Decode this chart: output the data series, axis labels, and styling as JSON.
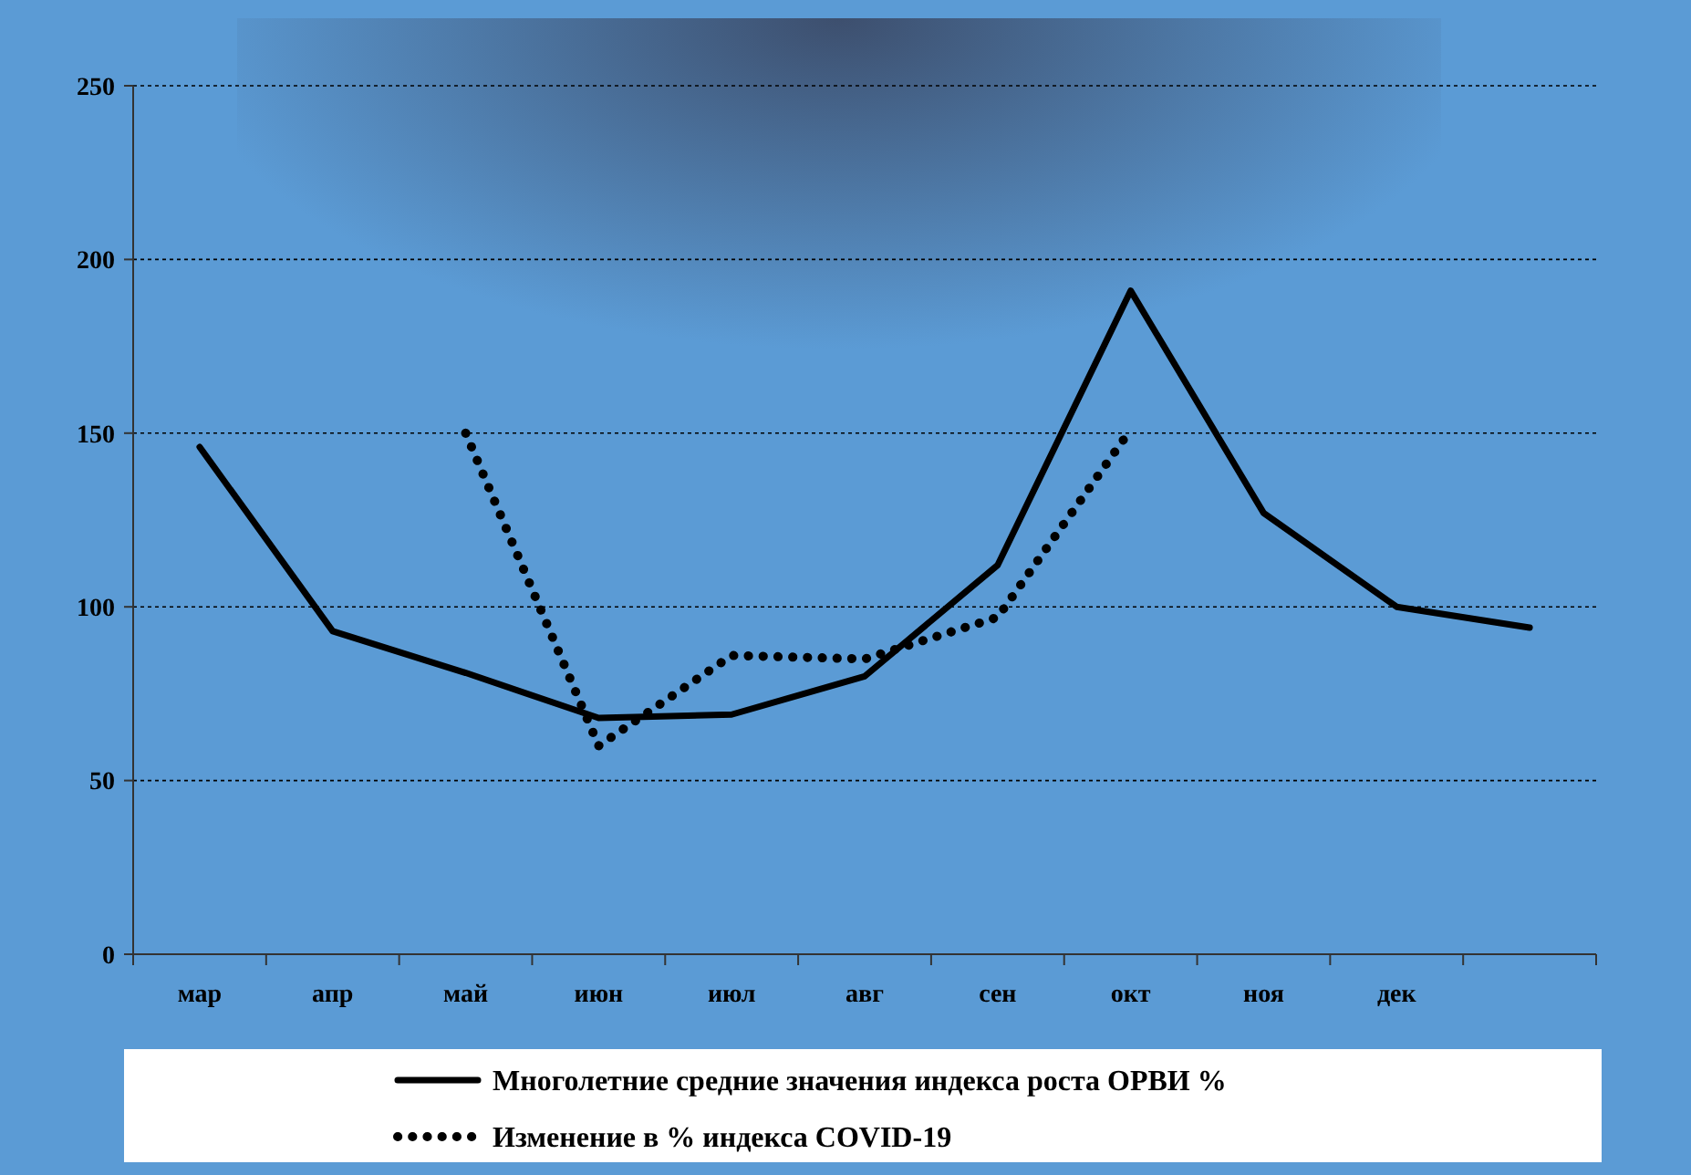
{
  "chart_data": {
    "type": "line",
    "categories": [
      "мар",
      "апр",
      "май",
      "июн",
      "июл",
      "авг",
      "сен",
      "окт",
      "ноя",
      "дек",
      null
    ],
    "ylim": [
      0,
      250
    ],
    "yticks": [
      0,
      50,
      100,
      150,
      200,
      250
    ],
    "grid": "y",
    "legend": "bottom",
    "series": [
      {
        "name": "Многолетние средние значения индекса роста ОРВИ %",
        "color": "#000000",
        "line_style": "solid",
        "values": [
          146,
          93,
          81,
          68,
          69,
          80,
          112,
          191,
          127,
          100,
          94
        ]
      },
      {
        "name": "Изменение в % индекса COVID-19",
        "color": "#000000",
        "line_style": "dotted",
        "values": [
          null,
          null,
          150,
          60,
          86,
          85,
          97,
          151,
          null,
          null,
          null
        ]
      }
    ]
  }
}
